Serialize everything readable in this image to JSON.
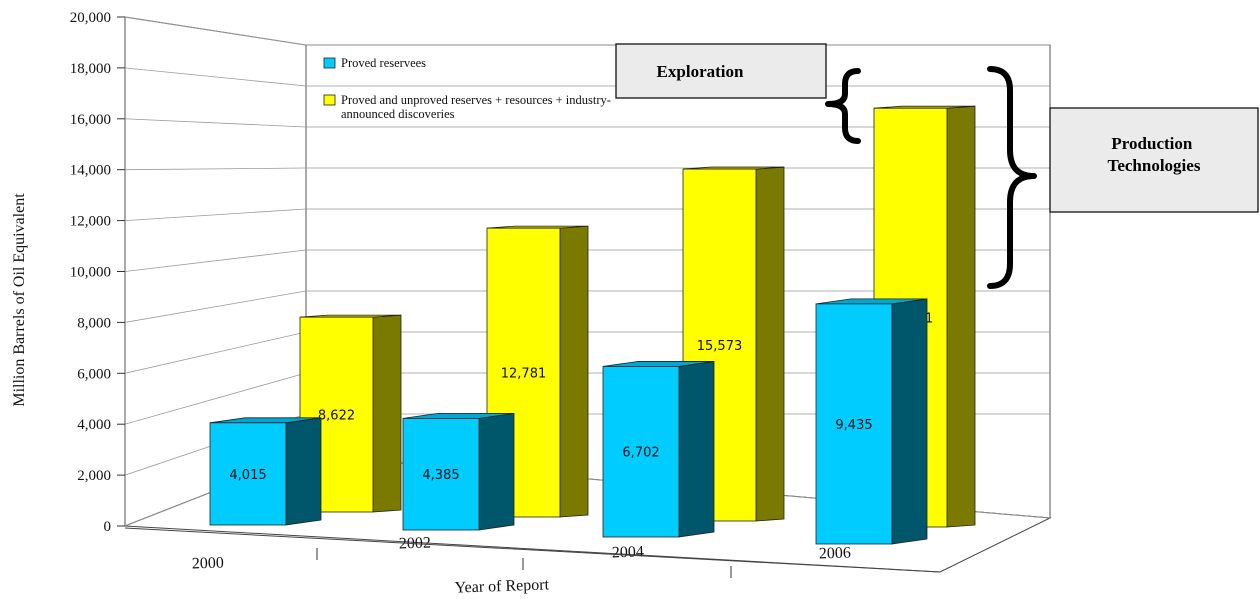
{
  "chart_data": {
    "type": "bar",
    "categories": [
      "2000",
      "2002",
      "2004",
      "2006"
    ],
    "series": [
      {
        "name": "Proved reservees",
        "color": "#00ccff",
        "values": [
          4015,
          4385,
          6702,
          9435
        ],
        "labels": [
          "4,015",
          "4,385",
          "6,702",
          "9,435"
        ]
      },
      {
        "name": "Proved and unproved reserves + resources + industry-announced discoveries",
        "color": "#ffff00",
        "values": [
          8622,
          12781,
          15573,
          18531
        ],
        "labels": [
          "8,622",
          "12,781",
          "15,573",
          "18,531"
        ]
      }
    ],
    "legend_lines": [
      [
        "Proved reservees"
      ],
      [
        "Proved and unproved reserves + resources + industry-",
        "announced discoveries"
      ]
    ],
    "yticks": [
      0,
      2000,
      4000,
      6000,
      8000,
      10000,
      12000,
      14000,
      16000,
      18000,
      20000
    ],
    "ytick_labels": [
      "0",
      "2,000",
      "4,000",
      "6,000",
      "8,000",
      "10,000",
      "12,000",
      "14,000",
      "16,000",
      "18,000",
      "20,000"
    ],
    "ylim": [
      0,
      20000
    ],
    "xlabel": "Year of Report",
    "ylabel": "Million Barrels of Oil Equivalent",
    "grid": true,
    "legend_position": "top-left",
    "style": "3d",
    "annotations": [
      {
        "text": "Exploration"
      },
      {
        "text": "Production\nTechnologies"
      }
    ]
  }
}
